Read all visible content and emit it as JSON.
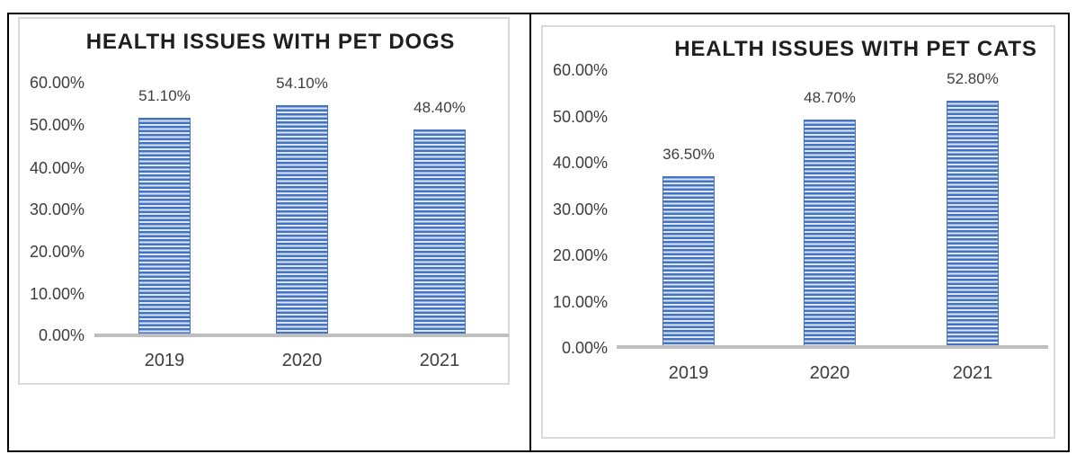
{
  "page": {
    "background": "#ffffff"
  },
  "colors": {
    "bar_primary": "#4472C4",
    "bar_stripe_light": "#DCE6F5",
    "axis_line": "#BFBFBF",
    "chart_border": "#D9D9D9",
    "panel_border": "#000000",
    "label_text": "#3D3D3D",
    "title_text": "#1F1F1F"
  },
  "chart_data": [
    {
      "type": "bar",
      "title": "HEALTH ISSUES WITH PET DOGS",
      "categories": [
        "2019",
        "2020",
        "2021"
      ],
      "values": [
        51.1,
        54.1,
        48.4
      ],
      "data_labels": [
        "51.10%",
        "54.10%",
        "48.40%"
      ],
      "y_tick_labels": [
        "60.00%",
        "50.00%",
        "40.00%",
        "30.00%",
        "20.00%",
        "10.00%",
        "0.00%"
      ],
      "ylim": [
        0,
        60
      ],
      "y_unit": "percent",
      "grid": false,
      "legend": "none",
      "bar_fill_pattern": "horizontal-stripes"
    },
    {
      "type": "bar",
      "title": "HEALTH ISSUES WITH PET CATS",
      "categories": [
        "2019",
        "2020",
        "2021"
      ],
      "values": [
        36.5,
        48.7,
        52.8
      ],
      "data_labels": [
        "36.50%",
        "48.70%",
        "52.80%"
      ],
      "y_tick_labels": [
        "60.00%",
        "50.00%",
        "40.00%",
        "30.00%",
        "20.00%",
        "10.00%",
        "0.00%"
      ],
      "ylim": [
        0,
        60
      ],
      "y_unit": "percent",
      "grid": false,
      "legend": "none",
      "bar_fill_pattern": "horizontal-stripes"
    }
  ]
}
